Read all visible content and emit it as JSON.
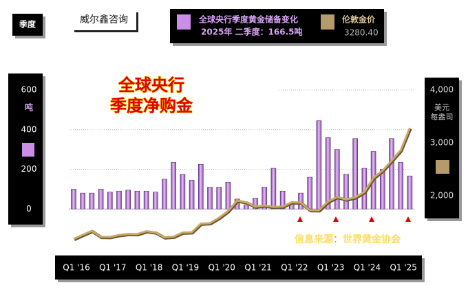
{
  "header": {
    "period_tag": "季度",
    "brand": "威尔鑫咨询",
    "legend_note": "2025年 二季度：166.5吨",
    "price_label": "3280.40"
  },
  "chart_data": {
    "type": "bar_line",
    "title": "全球央行\n季度净购金",
    "annotation": "信息来源：世界黄金协会",
    "y_unit": "吨",
    "y2_unit": "美元\n每盎司",
    "categories": [
      "Q1 '16",
      null,
      null,
      null,
      "Q1 '17",
      null,
      null,
      null,
      "Q1 '18",
      null,
      null,
      null,
      "Q1 '19",
      null,
      null,
      null,
      "Q1 '20",
      null,
      null,
      null,
      "Q1 '21",
      null,
      null,
      null,
      "Q1 '22",
      null,
      null,
      null,
      "Q1 '23",
      null,
      null,
      null,
      "Q1 '24",
      null,
      null,
      null,
      "Q1 '25",
      null
    ],
    "series": [
      {
        "name": "全球央行季度黄金储备变化",
        "color": "#c98ee8",
        "axis": "y",
        "values": [
          100,
          80,
          80,
          100,
          85,
          90,
          95,
          90,
          90,
          85,
          150,
          235,
          175,
          145,
          225,
          110,
          110,
          135,
          50,
          20,
          55,
          110,
          205,
          90,
          30,
          80,
          160,
          445,
          360,
          300,
          175,
          355,
          205,
          290,
          200,
          355,
          235,
          166.5
        ]
      },
      {
        "name": "伦敦金价",
        "color": "#c9a965",
        "axis": "y2",
        "values": [
          1183,
          1260,
          1335,
          1222,
          1219,
          1257,
          1278,
          1275,
          1329,
          1306,
          1213,
          1226,
          1304,
          1309,
          1472,
          1481,
          1583,
          1711,
          1909,
          1874,
          1794,
          1816,
          1789,
          1795,
          1877,
          1871,
          1729,
          1726,
          1890,
          1976,
          1929,
          1971,
          2070,
          2338,
          2474,
          2663,
          2860,
          3280.4
        ]
      }
    ],
    "ylim": [
      -200,
      600
    ],
    "yticks": [
      0,
      200,
      400,
      600
    ],
    "y2lim": [
      1000,
      4000
    ],
    "y2ticks": [
      {
        "value": 2000,
        "label": "2,000"
      },
      {
        "value": 3000,
        "label": "3,000"
      },
      {
        "value": 4000,
        "label": "4,000"
      }
    ],
    "grid": true
  }
}
